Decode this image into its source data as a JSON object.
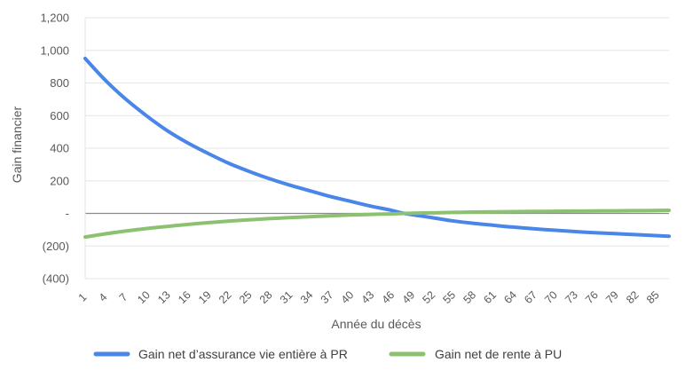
{
  "chart_data": {
    "type": "line",
    "title": "",
    "xlabel": "Année du décès",
    "ylabel": "Gain financier",
    "ylim": [
      -400,
      1200
    ],
    "xlim": [
      1,
      87
    ],
    "y_ticks": [
      {
        "value": 1200,
        "label": "1,200"
      },
      {
        "value": 1000,
        "label": "1,000"
      },
      {
        "value": 800,
        "label": "800"
      },
      {
        "value": 600,
        "label": "600"
      },
      {
        "value": 400,
        "label": "400"
      },
      {
        "value": 200,
        "label": "200"
      },
      {
        "value": 0,
        "label": "-"
      },
      {
        "value": -200,
        "label": "(200)"
      },
      {
        "value": -400,
        "label": "(400)"
      }
    ],
    "x_tick_labels": [
      "1",
      "4",
      "7",
      "10",
      "13",
      "16",
      "19",
      "22",
      "25",
      "28",
      "31",
      "34",
      "37",
      "40",
      "43",
      "46",
      "49",
      "52",
      "55",
      "58",
      "61",
      "64",
      "67",
      "70",
      "73",
      "76",
      "79",
      "82",
      "85"
    ],
    "grid": "horizontal",
    "legend_position": "bottom",
    "series": [
      {
        "name": "Gain net d’assurance vie entière à PR",
        "color": "#4a86e8",
        "x": [
          1,
          4,
          7,
          10,
          13,
          16,
          19,
          22,
          25,
          28,
          31,
          34,
          37,
          40,
          43,
          46,
          48,
          52,
          55,
          58,
          61,
          64,
          67,
          70,
          73,
          76,
          79,
          82,
          85,
          87
        ],
        "y": [
          950,
          815,
          700,
          600,
          510,
          435,
          370,
          310,
          260,
          215,
          175,
          140,
          105,
          75,
          45,
          20,
          0,
          -25,
          -45,
          -60,
          -72,
          -84,
          -94,
          -103,
          -111,
          -118,
          -124,
          -130,
          -136,
          -140
        ]
      },
      {
        "name": "Gain net de rente à PU",
        "color": "#8bc170",
        "x": [
          1,
          4,
          7,
          10,
          13,
          16,
          19,
          22,
          25,
          28,
          31,
          34,
          37,
          40,
          43,
          46,
          48,
          52,
          55,
          58,
          61,
          64,
          67,
          70,
          73,
          76,
          79,
          82,
          85,
          87
        ],
        "y": [
          -145,
          -125,
          -108,
          -93,
          -80,
          -68,
          -57,
          -48,
          -40,
          -32,
          -26,
          -20,
          -15,
          -10,
          -6,
          -3,
          0,
          3,
          6,
          8,
          10,
          11,
          12,
          13,
          14,
          15,
          16,
          17,
          18,
          19
        ]
      }
    ]
  }
}
